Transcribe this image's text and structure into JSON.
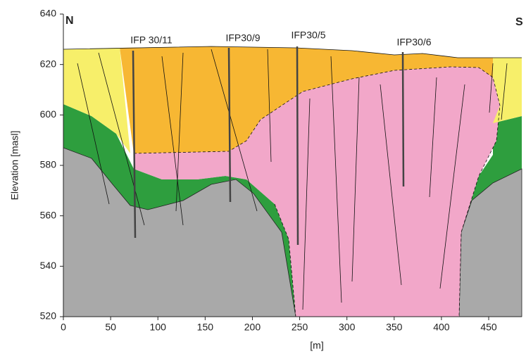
{
  "chart_data": {
    "type": "cross-section",
    "x_label": "[m]",
    "y_label": "Elevation [masl]",
    "xlim": [
      0,
      485
    ],
    "ylim": [
      520,
      640
    ],
    "xticks": [
      0,
      50,
      100,
      150,
      200,
      250,
      300,
      350,
      400,
      450
    ],
    "yticks": [
      520,
      540,
      560,
      580,
      600,
      620,
      640
    ],
    "annotations": [
      "N",
      "S",
      "IFP 30/11",
      "IFP30/9",
      "IFP30/5",
      "IFP30/6"
    ]
  }
}
